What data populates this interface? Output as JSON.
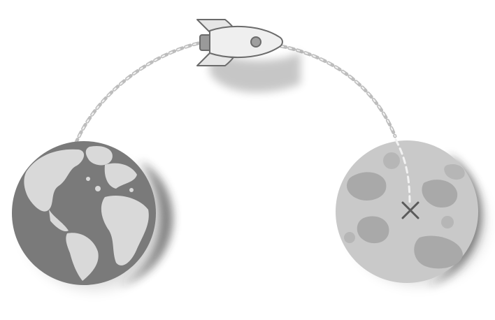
{
  "scene": {
    "background": "#ffffff",
    "palette": {
      "earth_ocean": "#7a7a7a",
      "earth_land": "#d9d9d9",
      "moon_base": "#c9c9c9",
      "moon_dark": "#a9a9a9",
      "rocket_body": "#e6e6e6",
      "rocket_outline": "#6b6b6b",
      "shadow": "#3a3a3a",
      "path_dash": "#bdbdbd",
      "marker": "#5a5a5a"
    },
    "icons": {
      "earth": "earth-globe-icon",
      "moon": "moon-icon",
      "rocket": "rocket-icon",
      "target": "x-mark-icon"
    }
  }
}
